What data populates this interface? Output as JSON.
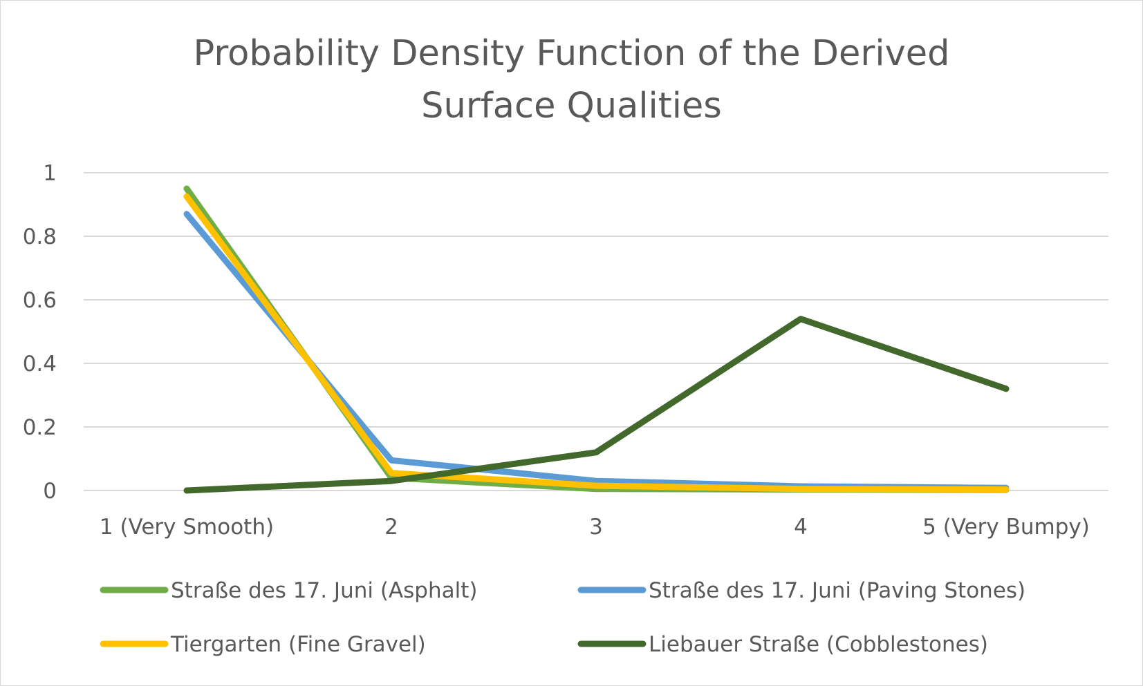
{
  "chart_data": {
    "type": "line",
    "title": [
      "Probability Density Function of the Derived",
      "Surface Qualities"
    ],
    "categories": [
      "1 (Very Smooth)",
      "2",
      "3",
      "4",
      "5 (Very Bumpy)"
    ],
    "ylim": [
      0,
      1
    ],
    "yticks": [
      "0",
      "0.2",
      "0.4",
      "0.6",
      "0.8",
      "1"
    ],
    "grid": true,
    "legend_position": "bottom",
    "series": [
      {
        "name": "Straße des 17. Juni (Asphalt)",
        "color": "#70ad47",
        "values": [
          0.95,
          0.04,
          0.005,
          0.003,
          0.002
        ]
      },
      {
        "name": "Straße des 17. Juni (Paving Stones)",
        "color": "#5b9bd5",
        "values": [
          0.87,
          0.095,
          0.03,
          0.013,
          0.008
        ]
      },
      {
        "name": "Tiergarten (Fine Gravel)",
        "color": "#ffc000",
        "values": [
          0.925,
          0.055,
          0.015,
          0.005,
          0.003
        ]
      },
      {
        "name": "Liebauer Straße (Cobblestones)",
        "color": "#43682b",
        "values": [
          0.0,
          0.03,
          0.12,
          0.54,
          0.32
        ]
      }
    ]
  }
}
